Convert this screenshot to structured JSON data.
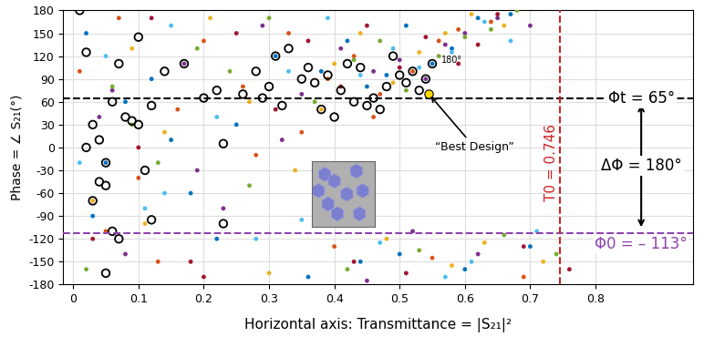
{
  "chart_data": {
    "type": "scatter",
    "x_label": "Horizontal axis: Transmittance = |S₂₁|²",
    "y_label": "Phase = ∠ S₂₁(°)",
    "xlim": [
      -0.015,
      0.95
    ],
    "xticks": [
      0,
      0.1,
      0.2,
      0.3,
      0.4,
      0.5,
      0.6,
      0.7,
      0.8
    ],
    "ylim": [
      -180,
      180
    ],
    "yticks": [
      -180,
      -150,
      -120,
      -90,
      -60,
      -30,
      0,
      30,
      60,
      90,
      120,
      150,
      180
    ],
    "grid": true,
    "series": [
      {
        "color": "#0072BD",
        "marker": "dot",
        "x": [
          0.02,
          0.05,
          0.12,
          0.18,
          0.25,
          0.31,
          0.38,
          0.42,
          0.45,
          0.48,
          0.51,
          0.55,
          0.58,
          0.62,
          0.44,
          0.36,
          0.08,
          0.22,
          0.5,
          0.6,
          0.67,
          0.7,
          0.03,
          0.15
        ],
        "values": [
          150,
          -20,
          90,
          -60,
          30,
          120,
          100,
          140,
          80,
          95,
          160,
          110,
          130,
          170,
          -150,
          -170,
          60,
          -120,
          -140,
          -160,
          175,
          -130,
          -90,
          10
        ]
      },
      {
        "color": "#D95319",
        "marker": "dot",
        "x": [
          0.01,
          0.07,
          0.1,
          0.16,
          0.2,
          0.28,
          0.33,
          0.39,
          0.43,
          0.47,
          0.52,
          0.56,
          0.59,
          0.64,
          0.4,
          0.55,
          0.13,
          0.26,
          0.46,
          0.69,
          0.05,
          0.35
        ],
        "values": [
          100,
          170,
          -40,
          50,
          140,
          -10,
          150,
          90,
          120,
          70,
          100,
          140,
          155,
          165,
          -130,
          -145,
          -150,
          80,
          40,
          -170,
          -110,
          20
        ]
      },
      {
        "color": "#EDB120",
        "marker": "dot",
        "x": [
          0.03,
          0.09,
          0.14,
          0.21,
          0.27,
          0.34,
          0.4,
          0.44,
          0.49,
          0.53,
          0.57,
          0.61,
          0.66,
          0.48,
          0.58,
          0.11,
          0.3,
          0.38,
          0.72,
          0.63
        ],
        "values": [
          -70,
          130,
          20,
          170,
          60,
          -30,
          110,
          150,
          85,
          125,
          150,
          175,
          160,
          -120,
          -155,
          -100,
          -165,
          50,
          -150,
          -125
        ]
      },
      {
        "color": "#7E2F8E",
        "marker": "dot",
        "x": [
          0.04,
          0.08,
          0.17,
          0.23,
          0.29,
          0.35,
          0.41,
          0.46,
          0.5,
          0.54,
          0.57,
          0.6,
          0.65,
          0.52,
          0.62,
          0.19,
          0.32,
          0.45,
          0.06,
          0.7
        ],
        "values": [
          40,
          -140,
          110,
          -80,
          160,
          70,
          130,
          100,
          115,
          90,
          135,
          150,
          170,
          -110,
          -140,
          -30,
          10,
          -175,
          75,
          160
        ]
      },
      {
        "color": "#77AC30",
        "marker": "dot",
        "x": [
          0.02,
          0.06,
          0.13,
          0.19,
          0.24,
          0.3,
          0.37,
          0.43,
          0.47,
          0.51,
          0.56,
          0.6,
          0.64,
          0.68,
          0.42,
          0.53,
          0.66,
          0.09,
          0.27,
          0.74
        ],
        "values": [
          -160,
          80,
          -20,
          130,
          100,
          170,
          60,
          115,
          140,
          75,
          120,
          145,
          155,
          180,
          -160,
          -135,
          -115,
          30,
          -50,
          -140
        ]
      },
      {
        "color": "#4DBEEE",
        "marker": "dot",
        "x": [
          0.05,
          0.11,
          0.15,
          0.22,
          0.28,
          0.33,
          0.39,
          0.44,
          0.49,
          0.53,
          0.58,
          0.63,
          0.67,
          0.47,
          0.57,
          0.71,
          0.14,
          0.35,
          0.01,
          0.61
        ],
        "values": [
          120,
          -80,
          160,
          40,
          -120,
          100,
          170,
          95,
          130,
          105,
          125,
          165,
          140,
          -125,
          -170,
          -110,
          -60,
          -95,
          -20,
          -150
        ]
      },
      {
        "color": "#A2142F",
        "marker": "dot",
        "x": [
          0.03,
          0.1,
          0.18,
          0.25,
          0.31,
          0.36,
          0.41,
          0.45,
          0.5,
          0.54,
          0.59,
          0.62,
          0.65,
          0.43,
          0.51,
          0.69,
          0.12,
          0.2,
          0.38,
          0.76
        ],
        "values": [
          -120,
          0,
          -150,
          150,
          50,
          140,
          80,
          160,
          105,
          145,
          110,
          135,
          175,
          -150,
          -165,
          -130,
          170,
          -170,
          -80,
          -160
        ]
      },
      {
        "color": "#000000",
        "marker": "open_circle",
        "x": [
          0.01,
          0.02,
          0.03,
          0.04,
          0.05,
          0.06,
          0.07,
          0.08,
          0.09,
          0.1,
          0.11,
          0.12,
          0.03,
          0.05,
          0.02,
          0.06,
          0.1,
          0.14,
          0.17,
          0.2,
          0.22,
          0.23,
          0.26,
          0.28,
          0.29,
          0.3,
          0.31,
          0.32,
          0.33,
          0.35,
          0.36,
          0.37,
          0.38,
          0.39,
          0.4,
          0.41,
          0.42,
          0.43,
          0.44,
          0.45,
          0.46,
          0.47,
          0.48,
          0.49,
          0.5,
          0.51,
          0.52,
          0.53,
          0.54,
          0.55,
          0.07,
          0.12,
          0.23,
          0.05,
          0.04
        ],
        "values": [
          180,
          125,
          30,
          10,
          -20,
          60,
          110,
          40,
          35,
          30,
          -30,
          55,
          -70,
          -50,
          0,
          -110,
          145,
          100,
          110,
          65,
          75,
          5,
          70,
          100,
          65,
          80,
          120,
          55,
          130,
          90,
          105,
          85,
          50,
          95,
          40,
          75,
          110,
          60,
          105,
          55,
          65,
          50,
          80,
          120,
          95,
          85,
          100,
          75,
          90,
          110,
          -120,
          -95,
          -100,
          -165,
          -45
        ]
      }
    ],
    "best_point": {
      "x": 0.545,
      "y": 70,
      "color": "#FFD700",
      "label": "“Best Design”"
    },
    "reference_lines": [
      {
        "axis": "y",
        "value": 65,
        "color": "#000000",
        "line_style": "dashed",
        "label": "Φt = 65°"
      },
      {
        "axis": "y",
        "value": -113,
        "color": "#8E44AD",
        "line_style": "dashed",
        "label": "Φ0 = – 113°"
      },
      {
        "axis": "x",
        "value": 0.746,
        "color": "#CC2222",
        "line_style": "dashed",
        "label": "T0 = 0.746"
      }
    ],
    "difference_label": "ΔΦ = 180°",
    "cluster_label": "180°"
  }
}
